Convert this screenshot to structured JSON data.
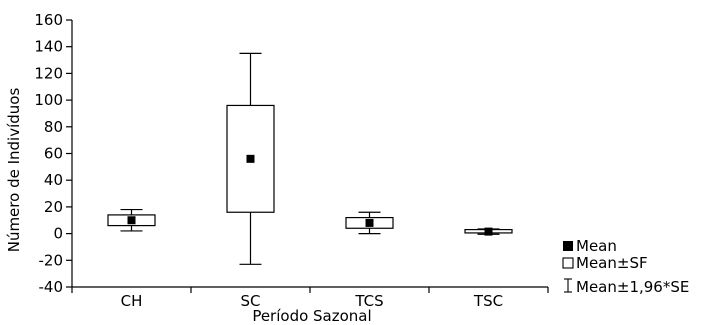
{
  "chart_data": {
    "type": "box",
    "xlabel": "Período Sazonal",
    "ylabel": "Número de Indivíduos",
    "ylim": [
      -40,
      160
    ],
    "yticks": [
      -40,
      -20,
      0,
      20,
      40,
      60,
      80,
      100,
      120,
      140,
      160
    ],
    "categories": [
      "CH",
      "SC",
      "TCS",
      "TSC"
    ],
    "boxes": [
      {
        "category": "CH",
        "mean": 10,
        "se_low": 6,
        "se_high": 14,
        "ci_low": 2,
        "ci_high": 18
      },
      {
        "category": "SC",
        "mean": 56,
        "se_low": 16,
        "se_high": 96,
        "ci_low": -23,
        "ci_high": 135
      },
      {
        "category": "TCS",
        "mean": 8,
        "se_low": 4,
        "se_high": 12,
        "ci_low": 0,
        "ci_high": 16
      },
      {
        "category": "TSC",
        "mean": 1.5,
        "se_low": 0.5,
        "se_high": 3,
        "ci_low": -0.5,
        "ci_high": 3.5
      }
    ],
    "legend": {
      "position": "bottom-right",
      "entries": [
        "Mean",
        "Mean±SF",
        "Mean±1,96*SE"
      ]
    },
    "grid": false
  }
}
